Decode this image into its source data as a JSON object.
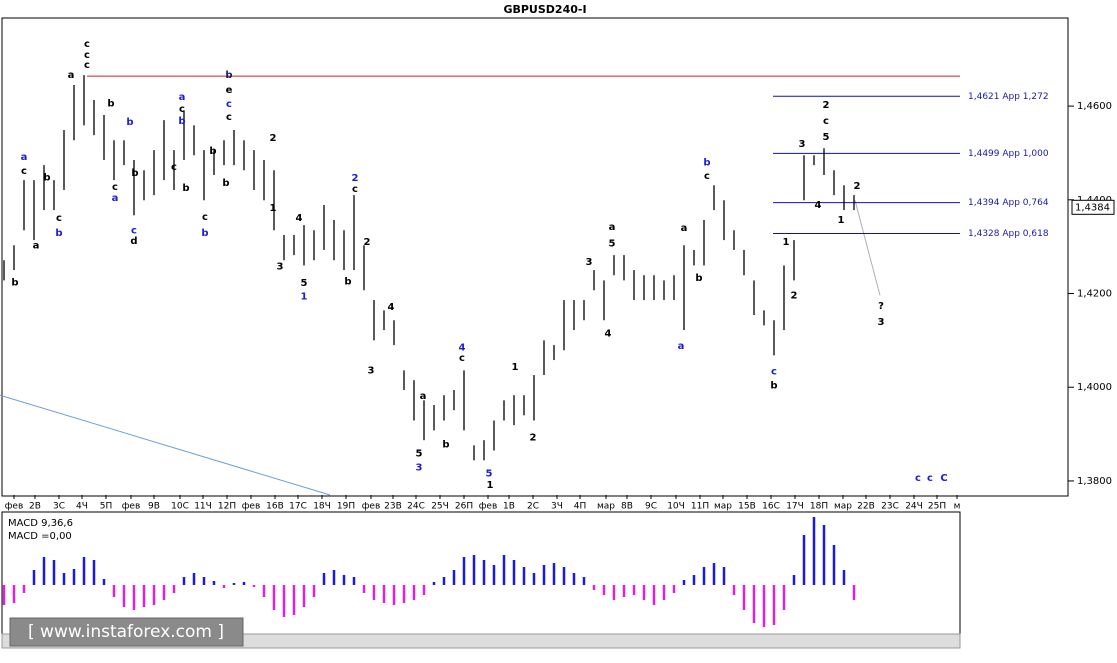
{
  "chart_data": {
    "type": "ohlc",
    "title": "GBPUSD240-I",
    "bar_color": "#000000",
    "x": [
      0,
      1,
      2,
      3,
      4,
      5,
      6,
      7,
      8,
      9,
      10,
      11,
      12,
      13,
      14,
      15,
      16,
      17,
      18,
      19,
      20,
      21,
      22,
      23,
      24,
      25,
      26,
      27,
      28,
      29,
      30,
      31,
      32,
      33,
      34,
      35,
      36,
      37,
      38,
      39,
      40,
      41,
      42,
      43,
      44,
      45,
      46,
      47,
      48,
      49,
      50,
      51,
      52,
      53,
      54,
      55,
      56,
      57,
      58,
      59,
      60,
      61,
      62,
      63,
      64,
      65,
      66,
      67,
      68,
      69,
      70,
      71,
      72,
      73,
      74,
      75,
      76,
      77,
      78,
      79,
      80,
      81,
      82,
      83,
      84,
      85
    ],
    "high": [
      1.4271,
      1.4303,
      1.4442,
      1.4442,
      1.4474,
      1.4442,
      1.4549,
      1.4645,
      1.4666,
      1.4613,
      1.4581,
      1.4527,
      1.4527,
      1.4485,
      1.4463,
      1.4506,
      1.457,
      1.4506,
      1.4591,
      1.4559,
      1.4506,
      1.4506,
      1.4527,
      1.4549,
      1.4527,
      1.4506,
      1.4485,
      1.4463,
      1.4325,
      1.4325,
      1.4346,
      1.4335,
      1.4389,
      1.4357,
      1.4335,
      1.441,
      1.4303,
      1.4186,
      1.4164,
      1.4143,
      1.4036,
      1.4015,
      1.3972,
      1.3962,
      1.3983,
      1.3994,
      1.4036,
      1.3876,
      1.3887,
      1.3929,
      1.3972,
      1.3983,
      1.3983,
      1.4026,
      1.41,
      1.409,
      1.4186,
      1.4186,
      1.4186,
      1.425,
      1.4228,
      1.4282,
      1.4282,
      1.425,
      1.4239,
      1.4239,
      1.4228,
      1.4239,
      1.4303,
      1.4293,
      1.4357,
      1.4431,
      1.4399,
      1.4335,
      1.4293,
      1.4228,
      1.4164,
      1.4143,
      1.426,
      1.4314,
      1.4495,
      1.4495,
      1.451,
      1.4463,
      1.4431,
      1.441
    ],
    "low": [
      1.4228,
      1.425,
      1.4335,
      1.4314,
      1.4378,
      1.4378,
      1.4421,
      1.4527,
      1.4559,
      1.4538,
      1.4485,
      1.4442,
      1.4474,
      1.4367,
      1.4399,
      1.441,
      1.4442,
      1.4421,
      1.4485,
      1.4495,
      1.4399,
      1.4453,
      1.4474,
      1.4474,
      1.4463,
      1.4421,
      1.4399,
      1.4335,
      1.4271,
      1.4282,
      1.426,
      1.4271,
      1.4293,
      1.4271,
      1.425,
      1.425,
      1.4207,
      1.41,
      1.4122,
      1.409,
      1.3994,
      1.3929,
      1.3887,
      1.3908,
      1.3929,
      1.3951,
      1.3908,
      1.3844,
      1.3844,
      1.3865,
      1.3929,
      1.3919,
      1.394,
      1.3929,
      1.4026,
      1.4058,
      1.4079,
      1.4122,
      1.4143,
      1.4207,
      1.4143,
      1.4239,
      1.4228,
      1.4186,
      1.4186,
      1.4186,
      1.4186,
      1.4186,
      1.4122,
      1.426,
      1.426,
      1.4378,
      1.4314,
      1.4293,
      1.4239,
      1.4154,
      1.4132,
      1.4068,
      1.4122,
      1.4228,
      1.4399,
      1.4474,
      1.4453,
      1.441,
      1.4378,
      1.4378
    ],
    "xlim": [
      -0.4,
      95.6
    ],
    "ylim": [
      1.377,
      1.4788
    ],
    "yticks": [
      {
        "value": 1.46,
        "label": "1,4600"
      },
      {
        "value": 1.44,
        "label": "1,4400"
      },
      {
        "value": 1.42,
        "label": "1,4200"
      },
      {
        "value": 1.4,
        "label": "1,4000"
      },
      {
        "value": 1.38,
        "label": "1,3800"
      }
    ],
    "xticks": [
      {
        "value": 1,
        "label": "фев"
      },
      {
        "value": 3.1,
        "label": "2В"
      },
      {
        "value": 5.5,
        "label": "3С"
      },
      {
        "value": 7.8,
        "label": "4Ч"
      },
      {
        "value": 10.2,
        "label": "5П"
      },
      {
        "value": 12.7,
        "label": "фев"
      },
      {
        "value": 15,
        "label": "9В"
      },
      {
        "value": 17.6,
        "label": "10С"
      },
      {
        "value": 19.9,
        "label": "11Ч"
      },
      {
        "value": 22.3,
        "label": "12П"
      },
      {
        "value": 24.7,
        "label": "фев"
      },
      {
        "value": 27.1,
        "label": "16В"
      },
      {
        "value": 29.4,
        "label": "17С"
      },
      {
        "value": 31.8,
        "label": "18Ч"
      },
      {
        "value": 34.2,
        "label": "19П"
      },
      {
        "value": 36.7,
        "label": "фев"
      },
      {
        "value": 38.9,
        "label": "23В"
      },
      {
        "value": 41.2,
        "label": "24С"
      },
      {
        "value": 43.6,
        "label": "25Ч"
      },
      {
        "value": 46,
        "label": "26П"
      },
      {
        "value": 48.4,
        "label": "фев"
      },
      {
        "value": 50.5,
        "label": "1В"
      },
      {
        "value": 52.9,
        "label": "2С"
      },
      {
        "value": 55.3,
        "label": "3Ч"
      },
      {
        "value": 57.6,
        "label": "4П"
      },
      {
        "value": 60.2,
        "label": "мар"
      },
      {
        "value": 62.3,
        "label": "8В"
      },
      {
        "value": 64.7,
        "label": "9С"
      },
      {
        "value": 67.2,
        "label": "10Ч"
      },
      {
        "value": 69.6,
        "label": "11П"
      },
      {
        "value": 71.9,
        "label": "мар"
      },
      {
        "value": 74.3,
        "label": "15В"
      },
      {
        "value": 76.7,
        "label": "16С"
      },
      {
        "value": 79.1,
        "label": "17Ч"
      },
      {
        "value": 81.5,
        "label": "18П"
      },
      {
        "value": 83.9,
        "label": "мар"
      },
      {
        "value": 86.2,
        "label": "22В"
      },
      {
        "value": 88.6,
        "label": "23С"
      },
      {
        "value": 91,
        "label": "24Ч"
      },
      {
        "value": 93.3,
        "label": "25П"
      },
      {
        "value": 95.3,
        "label": "м"
      }
    ],
    "last_price": {
      "value": 1.4384,
      "label": "1,4384"
    },
    "levels_start": 76.9,
    "levels_color": "#1010b0",
    "levels": [
      {
        "value": 1.4621,
        "label": "1,4621 App 1,272"
      },
      {
        "value": 1.4499,
        "label": "1,4499 App 1,000"
      },
      {
        "value": 1.4394,
        "label": "1,4394 App 0,764"
      },
      {
        "value": 1.4328,
        "label": "1,4328 App 0,618"
      }
    ],
    "hline": {
      "value": 1.4664,
      "start": 8.3,
      "color": "#d02020"
    },
    "trend_lines": [
      {
        "x": [
          -0.4,
          32.6
        ],
        "y": [
          1.3983,
          1.377
        ],
        "color": "#6a9fd8"
      },
      {
        "x": [
          85.1,
          87.6
        ],
        "y": [
          1.4399,
          1.4196
        ],
        "color": "#b0b0b0"
      }
    ],
    "annotations": [
      {
        "text": "c",
        "x": 8.3,
        "y": 1.4732,
        "color": "#000000"
      },
      {
        "text": "c",
        "x": 8.3,
        "y": 1.4709,
        "color": "#000000"
      },
      {
        "text": "c",
        "x": 8.3,
        "y": 1.4688,
        "color": "#000000"
      },
      {
        "text": "a",
        "x": 6.7,
        "y": 1.4666,
        "color": "#000000"
      },
      {
        "text": "a",
        "x": 2,
        "y": 1.4491,
        "color": "#1c1cd8"
      },
      {
        "text": "c",
        "x": 2,
        "y": 1.4461,
        "color": "#000000"
      },
      {
        "text": "b",
        "x": 1.1,
        "y": 1.4224,
        "color": "#000000"
      },
      {
        "text": "a",
        "x": 3.2,
        "y": 1.4303,
        "color": "#000000"
      },
      {
        "text": "b",
        "x": 4.3,
        "y": 1.4448,
        "color": "#000000"
      },
      {
        "text": "c",
        "x": 5.5,
        "y": 1.4361,
        "color": "#000000"
      },
      {
        "text": "b",
        "x": 5.5,
        "y": 1.4329,
        "color": "#1c1cd8"
      },
      {
        "text": "b",
        "x": 10.7,
        "y": 1.4606,
        "color": "#000000"
      },
      {
        "text": "b",
        "x": 12.6,
        "y": 1.4566,
        "color": "#1c1cd8"
      },
      {
        "text": "c",
        "x": 11.1,
        "y": 1.4427,
        "color": "#000000"
      },
      {
        "text": "a",
        "x": 11.1,
        "y": 1.4404,
        "color": "#1c1cd8"
      },
      {
        "text": "b",
        "x": 13.1,
        "y": 1.4457,
        "color": "#000000"
      },
      {
        "text": "c",
        "x": 13,
        "y": 1.4335,
        "color": "#1c1cd8"
      },
      {
        "text": "d",
        "x": 13,
        "y": 1.4312,
        "color": "#000000"
      },
      {
        "text": "a",
        "x": 17.8,
        "y": 1.4619,
        "color": "#1c1cd8"
      },
      {
        "text": "c",
        "x": 17.8,
        "y": 1.4594,
        "color": "#000000"
      },
      {
        "text": "b",
        "x": 17.8,
        "y": 1.4568,
        "color": "#1c1cd8"
      },
      {
        "text": "b",
        "x": 18.2,
        "y": 1.4425,
        "color": "#000000"
      },
      {
        "text": "c",
        "x": 17,
        "y": 1.447,
        "color": "#000000"
      },
      {
        "text": "c",
        "x": 20.1,
        "y": 1.4363,
        "color": "#000000"
      },
      {
        "text": "b",
        "x": 20.1,
        "y": 1.4329,
        "color": "#1c1cd8"
      },
      {
        "text": "b",
        "x": 20.9,
        "y": 1.4504,
        "color": "#000000"
      },
      {
        "text": "b",
        "x": 22.2,
        "y": 1.4436,
        "color": "#000000"
      },
      {
        "text": "b",
        "x": 22.5,
        "y": 1.4666,
        "color": "#1a1a70"
      },
      {
        "text": "e",
        "x": 22.5,
        "y": 1.4634,
        "color": "#000000"
      },
      {
        "text": "c",
        "x": 22.5,
        "y": 1.4604,
        "color": "#1c1cd8"
      },
      {
        "text": "c",
        "x": 22.5,
        "y": 1.4577,
        "color": "#000000"
      },
      {
        "text": "2",
        "x": 26.9,
        "y": 1.4532,
        "color": "#000000"
      },
      {
        "text": "1",
        "x": 26.9,
        "y": 1.4382,
        "color": "#000000"
      },
      {
        "text": "3",
        "x": 27.6,
        "y": 1.4258,
        "color": "#000000"
      },
      {
        "text": "4",
        "x": 29.5,
        "y": 1.4361,
        "color": "#000000"
      },
      {
        "text": "5",
        "x": 30,
        "y": 1.4222,
        "color": "#000000"
      },
      {
        "text": "1",
        "x": 30,
        "y": 1.4194,
        "color": "#1c1cd8"
      },
      {
        "text": "2",
        "x": 35.1,
        "y": 1.4446,
        "color": "#1c1cd8"
      },
      {
        "text": "c",
        "x": 35.1,
        "y": 1.4423,
        "color": "#000000"
      },
      {
        "text": "2",
        "x": 36.3,
        "y": 1.431,
        "color": "#000000"
      },
      {
        "text": "b",
        "x": 34.4,
        "y": 1.4226,
        "color": "#000000"
      },
      {
        "text": "4",
        "x": 38.7,
        "y": 1.4171,
        "color": "#000000"
      },
      {
        "text": "3",
        "x": 36.7,
        "y": 1.4036,
        "color": "#000000"
      },
      {
        "text": "a",
        "x": 41.9,
        "y": 1.3981,
        "color": "#000000"
      },
      {
        "text": "b",
        "x": 44.2,
        "y": 1.3878,
        "color": "#000000"
      },
      {
        "text": "5",
        "x": 41.5,
        "y": 1.3859,
        "color": "#000000"
      },
      {
        "text": "3",
        "x": 41.5,
        "y": 1.3829,
        "color": "#1c1cd8"
      },
      {
        "text": "4",
        "x": 45.8,
        "y": 1.4085,
        "color": "#1c1cd8"
      },
      {
        "text": "c",
        "x": 45.8,
        "y": 1.4062,
        "color": "#000000"
      },
      {
        "text": "5",
        "x": 48.5,
        "y": 1.3816,
        "color": "#1c1cd8"
      },
      {
        "text": "1",
        "x": 48.6,
        "y": 1.3791,
        "color": "#000000"
      },
      {
        "text": "1",
        "x": 51.1,
        "y": 1.4043,
        "color": "#000000"
      },
      {
        "text": "2",
        "x": 52.9,
        "y": 1.3893,
        "color": "#000000"
      },
      {
        "text": "3",
        "x": 58.5,
        "y": 1.4267,
        "color": "#000000"
      },
      {
        "text": "a",
        "x": 60.8,
        "y": 1.4342,
        "color": "#000000"
      },
      {
        "text": "5",
        "x": 60.8,
        "y": 1.4307,
        "color": "#000000"
      },
      {
        "text": "4",
        "x": 60.4,
        "y": 1.4115,
        "color": "#000000"
      },
      {
        "text": "a",
        "x": 67.7,
        "y": 1.4088,
        "color": "#1c1cd8"
      },
      {
        "text": "a",
        "x": 68,
        "y": 1.434,
        "color": "#000000"
      },
      {
        "text": "b",
        "x": 69.5,
        "y": 1.4233,
        "color": "#000000"
      },
      {
        "text": "b",
        "x": 70.3,
        "y": 1.448,
        "color": "#1c1cd8"
      },
      {
        "text": "c",
        "x": 70.3,
        "y": 1.4451,
        "color": "#000000"
      },
      {
        "text": "1",
        "x": 78.2,
        "y": 1.431,
        "color": "#000000"
      },
      {
        "text": "2",
        "x": 79,
        "y": 1.4196,
        "color": "#000000"
      },
      {
        "text": "c",
        "x": 77,
        "y": 1.4034,
        "color": "#1c1cd8"
      },
      {
        "text": "b",
        "x": 77,
        "y": 1.4004,
        "color": "#000000"
      },
      {
        "text": "3",
        "x": 79.8,
        "y": 1.4519,
        "color": "#000000"
      },
      {
        "text": "2",
        "x": 82.2,
        "y": 1.4602,
        "color": "#000000"
      },
      {
        "text": "c",
        "x": 82.2,
        "y": 1.4568,
        "color": "#000000"
      },
      {
        "text": "5",
        "x": 82.2,
        "y": 1.4534,
        "color": "#000000"
      },
      {
        "text": "4",
        "x": 81.4,
        "y": 1.4389,
        "color": "#000000"
      },
      {
        "text": "1",
        "x": 83.7,
        "y": 1.4357,
        "color": "#000000"
      },
      {
        "text": "2",
        "x": 85.3,
        "y": 1.4429,
        "color": "#000000"
      },
      {
        "text": "?",
        "x": 87.7,
        "y": 1.4173,
        "color": "#000000"
      },
      {
        "text": "3",
        "x": 87.7,
        "y": 1.4139,
        "color": "#000000"
      },
      {
        "text": "c",
        "x": 91.4,
        "y": 1.3806,
        "color": "#1c1cd8"
      },
      {
        "text": "c",
        "x": 92.6,
        "y": 1.3806,
        "color": "#1c1cd8"
      },
      {
        "text": "C",
        "x": 94,
        "y": 1.3806,
        "color": "#1c1cd8"
      }
    ],
    "macd": {
      "label": "MACD 9,36,6",
      "value_label": "MACD =0,00",
      "ylim": [
        -0.0047,
        0.007
      ],
      "up_color": "#1c1cd8",
      "down_color": "#e020e0",
      "values": [
        -0.002,
        -0.0018,
        -0.0008,
        0.0015,
        0.0028,
        0.0025,
        0.0012,
        0.0016,
        0.0028,
        0.0025,
        0.0006,
        -0.0012,
        -0.0022,
        -0.0025,
        -0.0022,
        -0.002,
        -0.0015,
        -0.0008,
        0.0008,
        0.0012,
        0.0008,
        0.0004,
        -0.0003,
        0.0002,
        0.0003,
        -0.0002,
        -0.0012,
        -0.0025,
        -0.0032,
        -0.003,
        -0.0022,
        -0.0012,
        0.0012,
        0.0015,
        0.001,
        0.0008,
        -0.0008,
        -0.0015,
        -0.0018,
        -0.002,
        -0.0018,
        -0.0015,
        -0.001,
        0.0003,
        0.0008,
        0.0015,
        0.0028,
        0.003,
        0.0025,
        0.002,
        0.003,
        0.0025,
        0.0018,
        0.0012,
        0.002,
        0.0022,
        0.0018,
        0.0012,
        0.0008,
        -0.0005,
        -0.001,
        -0.0015,
        -0.0012,
        -0.001,
        -0.0015,
        -0.002,
        -0.0015,
        -0.0008,
        0.0005,
        0.001,
        0.0018,
        0.0022,
        0.0018,
        -0.001,
        -0.0025,
        -0.0038,
        -0.0042,
        -0.004,
        -0.0025,
        0.001,
        0.005,
        0.0068,
        0.006,
        0.004,
        0.0015,
        -0.0015
      ]
    }
  },
  "watermark": "[ www.instaforex.com ]"
}
